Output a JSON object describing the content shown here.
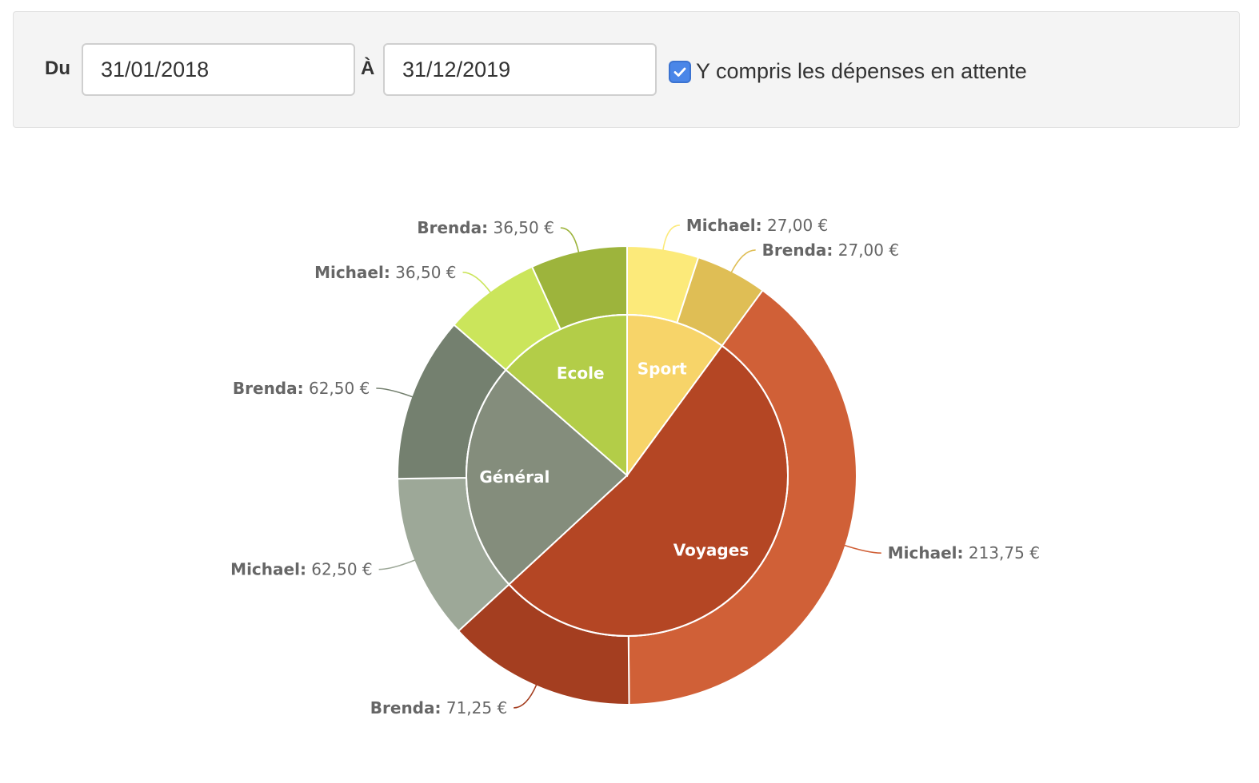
{
  "filter": {
    "from_label": "Du",
    "from_value": "31/01/2018",
    "to_label": "À",
    "to_value": "31/12/2019",
    "pending_checked": true,
    "pending_label": "Y compris les dépenses en attente",
    "accent_color": "#4a86e8"
  },
  "chart_data": {
    "type": "pie",
    "currency": "€",
    "categories": [
      {
        "name": "Sport",
        "color": "#f7d469",
        "slices": [
          {
            "name": "Michael",
            "value": 27.0,
            "label": "27,00 €",
            "color": "#fcea7a"
          },
          {
            "name": "Brenda",
            "value": 27.0,
            "label": "27,00 €",
            "color": "#dfbe55"
          }
        ]
      },
      {
        "name": "Voyages",
        "color": "#b44624",
        "slices": [
          {
            "name": "Michael",
            "value": 213.75,
            "label": "213,75 €",
            "color": "#d06037"
          },
          {
            "name": "Brenda",
            "value": 71.25,
            "label": "71,25 €",
            "color": "#a43e20"
          }
        ]
      },
      {
        "name": "Général",
        "color": "#848d7c",
        "slices": [
          {
            "name": "Michael",
            "value": 62.5,
            "label": "62,50 €",
            "color": "#9da898"
          },
          {
            "name": "Brenda",
            "value": 62.5,
            "label": "62,50 €",
            "color": "#74806f"
          }
        ]
      },
      {
        "name": "Ecole",
        "color": "#b3cd48",
        "slices": [
          {
            "name": "Michael",
            "value": 36.5,
            "label": "36,50 €",
            "color": "#cbe55b"
          },
          {
            "name": "Brenda",
            "value": 36.5,
            "label": "36,50 €",
            "color": "#9db43c"
          }
        ]
      }
    ]
  }
}
